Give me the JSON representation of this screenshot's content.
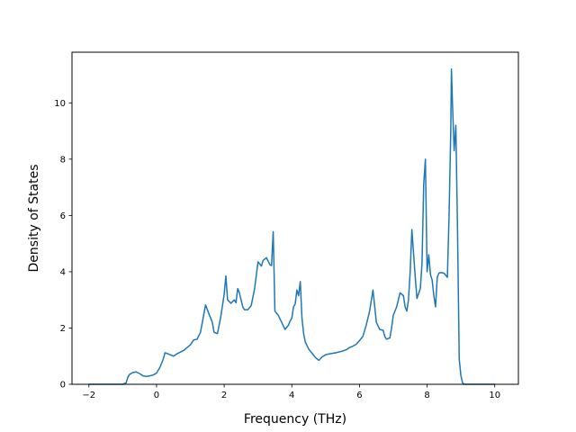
{
  "chart_data": {
    "type": "line",
    "title": "",
    "xlabel": "Frequency (THz)",
    "ylabel": "Density of States",
    "xlim": [
      -2.5,
      10.7
    ],
    "ylim": [
      0,
      11.8
    ],
    "xticks": [
      -2,
      0,
      2,
      4,
      6,
      8,
      10
    ],
    "xtick_labels": [
      "−2",
      "0",
      "2",
      "4",
      "6",
      "8",
      "10"
    ],
    "yticks": [
      0,
      2,
      4,
      6,
      8,
      10
    ],
    "ytick_labels": [
      "0",
      "2",
      "4",
      "6",
      "8",
      "10"
    ],
    "grid": false,
    "legend": "none",
    "line_color": "#1f77b4",
    "series": [
      {
        "x": [
          -2.0,
          -1.0,
          -0.9,
          -0.85,
          -0.8,
          -0.7,
          -0.6,
          -0.5,
          -0.4,
          -0.3,
          -0.2,
          -0.1,
          0.0,
          0.1,
          0.2,
          0.25,
          0.3,
          0.5,
          0.6,
          0.8,
          1.0,
          1.1,
          1.2,
          1.3,
          1.4,
          1.45,
          1.55,
          1.65,
          1.7,
          1.8,
          1.9,
          2.0,
          2.05,
          2.1,
          2.2,
          2.3,
          2.35,
          2.4,
          2.45,
          2.5,
          2.55,
          2.6,
          2.7,
          2.8,
          2.9,
          3.0,
          3.1,
          3.15,
          3.25,
          3.35,
          3.4,
          3.45,
          3.5,
          3.6,
          3.7,
          3.8,
          3.9,
          3.95,
          4.0,
          4.05,
          4.1,
          4.15,
          4.2,
          4.25,
          4.3,
          4.35,
          4.4,
          4.5,
          4.6,
          4.7,
          4.8,
          4.9,
          5.0,
          5.1,
          5.2,
          5.3,
          5.4,
          5.5,
          5.6,
          5.7,
          5.8,
          5.9,
          6.0,
          6.1,
          6.2,
          6.3,
          6.4,
          6.5,
          6.6,
          6.7,
          6.75,
          6.8,
          6.9,
          6.95,
          7.0,
          7.1,
          7.15,
          7.2,
          7.3,
          7.35,
          7.4,
          7.45,
          7.5,
          7.55,
          7.65,
          7.7,
          7.8,
          7.85,
          7.9,
          7.95,
          8.0,
          8.05,
          8.1,
          8.15,
          8.2,
          8.25,
          8.3,
          8.35,
          8.4,
          8.5,
          8.6,
          8.65,
          8.7,
          8.72,
          8.75,
          8.8,
          8.85,
          8.9,
          8.95,
          9.0,
          9.05,
          9.1,
          9.15,
          9.2,
          9.5,
          10.0
        ],
        "y": [
          0.0,
          0.0,
          0.05,
          0.25,
          0.35,
          0.42,
          0.44,
          0.38,
          0.3,
          0.28,
          0.3,
          0.33,
          0.4,
          0.6,
          0.9,
          1.12,
          1.1,
          1.0,
          1.08,
          1.2,
          1.4,
          1.58,
          1.6,
          1.85,
          2.5,
          2.82,
          2.5,
          2.2,
          1.85,
          1.8,
          2.4,
          3.2,
          3.85,
          3.0,
          2.88,
          3.0,
          2.9,
          3.4,
          3.25,
          3.0,
          2.75,
          2.65,
          2.65,
          2.8,
          3.4,
          4.35,
          4.2,
          4.4,
          4.5,
          4.25,
          4.22,
          5.42,
          2.6,
          2.45,
          2.2,
          1.95,
          2.1,
          2.25,
          2.35,
          2.75,
          2.85,
          3.35,
          3.15,
          3.65,
          2.35,
          1.8,
          1.5,
          1.25,
          1.1,
          0.95,
          0.85,
          0.98,
          1.05,
          1.08,
          1.1,
          1.12,
          1.15,
          1.18,
          1.22,
          1.3,
          1.35,
          1.42,
          1.55,
          1.7,
          2.1,
          2.6,
          3.35,
          2.2,
          1.95,
          1.92,
          1.7,
          1.6,
          1.65,
          2.0,
          2.45,
          2.75,
          3.0,
          3.25,
          3.15,
          2.75,
          2.6,
          3.0,
          4.0,
          5.5,
          3.8,
          3.05,
          3.4,
          4.3,
          7.1,
          8.0,
          4.0,
          4.6,
          3.9,
          3.7,
          3.15,
          2.75,
          3.8,
          3.95,
          3.97,
          3.95,
          3.8,
          6.0,
          9.0,
          11.2,
          10.0,
          8.3,
          9.2,
          5.5,
          0.9,
          0.3,
          0.05,
          0.0,
          0.0,
          0.0,
          0.0,
          0.0
        ]
      }
    ]
  }
}
